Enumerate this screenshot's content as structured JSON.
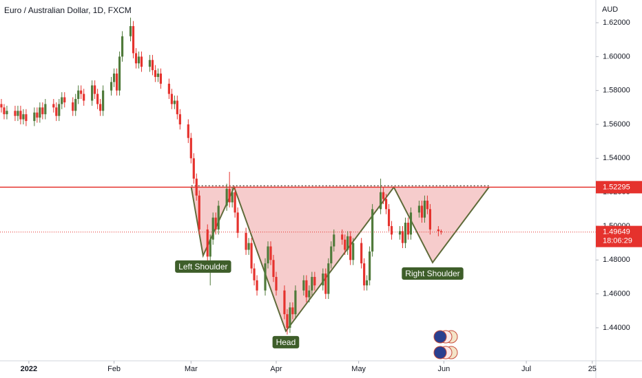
{
  "chart_data": {
    "type": "candlestick",
    "title": "Euro / Australian Dollar, 1D, FXCM",
    "y_axis_label": "AUD",
    "up_color": "#4f7a3a",
    "down_color": "#e5322d",
    "xlim": [
      -10.5,
      206.3
    ],
    "xticks": [
      {
        "value": 0,
        "label": "2022"
      },
      {
        "value": 31,
        "label": "Feb"
      },
      {
        "value": 59,
        "label": "Mar"
      },
      {
        "value": 90,
        "label": "Apr"
      },
      {
        "value": 120,
        "label": "May"
      },
      {
        "value": 151,
        "label": "Jun"
      },
      {
        "value": 181,
        "label": "Jul"
      },
      {
        "value": 205,
        "label": "25"
      }
    ],
    "ylim": [
      1.4205,
      1.6334
    ],
    "yticks": [
      {
        "value": 1.44,
        "label": "1.44000"
      },
      {
        "value": 1.46,
        "label": "1.46000"
      },
      {
        "value": 1.48,
        "label": "1.48000"
      },
      {
        "value": 1.5,
        "label": "1.50000"
      },
      {
        "value": 1.52,
        "label": "1.52000"
      },
      {
        "value": 1.54,
        "label": "1.54000"
      },
      {
        "value": 1.56,
        "label": "1.56000"
      },
      {
        "value": 1.58,
        "label": "1.58000"
      },
      {
        "value": 1.6,
        "label": "1.60000"
      },
      {
        "value": 1.62,
        "label": "1.62000"
      }
    ],
    "neckline": 1.52295,
    "neckline_color": "#e5322d",
    "last_price": 1.49649,
    "countdown": "18:06:29",
    "candles": [
      [
        -10,
        1.572,
        1.575,
        1.567,
        1.57
      ],
      [
        -9,
        1.57,
        1.572,
        1.563,
        1.566
      ],
      [
        -8,
        1.566,
        1.571,
        1.563,
        1.568
      ],
      [
        -5,
        1.568,
        1.571,
        1.562,
        1.565
      ],
      [
        -4,
        1.565,
        1.571,
        1.562,
        1.568
      ],
      [
        -3,
        1.568,
        1.571,
        1.56,
        1.563
      ],
      [
        -2,
        1.563,
        1.569,
        1.56,
        1.566
      ],
      [
        -1,
        1.566,
        1.569,
        1.559,
        1.562
      ],
      [
        2,
        1.562,
        1.57,
        1.559,
        1.567
      ],
      [
        3,
        1.567,
        1.57,
        1.561,
        1.564
      ],
      [
        4,
        1.564,
        1.573,
        1.561,
        1.57
      ],
      [
        5,
        1.57,
        1.573,
        1.563,
        1.566
      ],
      [
        6,
        1.566,
        1.575,
        1.563,
        1.572
      ],
      [
        9,
        1.572,
        1.575,
        1.567,
        1.57
      ],
      [
        10,
        1.57,
        1.573,
        1.562,
        1.565
      ],
      [
        11,
        1.565,
        1.575,
        1.562,
        1.572
      ],
      [
        12,
        1.572,
        1.579,
        1.569,
        1.576
      ],
      [
        13,
        1.576,
        1.579,
        1.57,
        1.573
      ],
      [
        16,
        1.573,
        1.576,
        1.565,
        1.568
      ],
      [
        17,
        1.568,
        1.578,
        1.565,
        1.575
      ],
      [
        18,
        1.575,
        1.583,
        1.572,
        1.58
      ],
      [
        19,
        1.58,
        1.583,
        1.575,
        1.578
      ],
      [
        20,
        1.578,
        1.581,
        1.571,
        1.574
      ],
      [
        23,
        1.574,
        1.586,
        1.571,
        1.583
      ],
      [
        24,
        1.583,
        1.586,
        1.575,
        1.578
      ],
      [
        25,
        1.578,
        1.581,
        1.569,
        1.572
      ],
      [
        26,
        1.572,
        1.575,
        1.565,
        1.568
      ],
      [
        27,
        1.568,
        1.583,
        1.565,
        1.58
      ],
      [
        30,
        1.58,
        1.588,
        1.577,
        1.585
      ],
      [
        31,
        1.585,
        1.593,
        1.582,
        1.59
      ],
      [
        32,
        1.59,
        1.593,
        1.577,
        1.58
      ],
      [
        33,
        1.58,
        1.603,
        1.577,
        1.6
      ],
      [
        34,
        1.6,
        1.615,
        1.597,
        1.612
      ],
      [
        37,
        1.612,
        1.623,
        1.609,
        1.618
      ],
      [
        38,
        1.618,
        1.621,
        1.599,
        1.602
      ],
      [
        39,
        1.602,
        1.605,
        1.593,
        1.596
      ],
      [
        40,
        1.596,
        1.603,
        1.593,
        1.6
      ],
      [
        41,
        1.6,
        1.603,
        1.591,
        1.594
      ],
      [
        44,
        1.594,
        1.601,
        1.591,
        1.598
      ],
      [
        45,
        1.598,
        1.601,
        1.589,
        1.592
      ],
      [
        46,
        1.592,
        1.595,
        1.585,
        1.588
      ],
      [
        47,
        1.588,
        1.593,
        1.585,
        1.59
      ],
      [
        48,
        1.59,
        1.593,
        1.581,
        1.584
      ],
      [
        51,
        1.584,
        1.587,
        1.575,
        1.578
      ],
      [
        52,
        1.578,
        1.581,
        1.569,
        1.572
      ],
      [
        53,
        1.572,
        1.577,
        1.569,
        1.574
      ],
      [
        54,
        1.574,
        1.577,
        1.563,
        1.566
      ],
      [
        55,
        1.566,
        1.569,
        1.557,
        1.56
      ],
      [
        58,
        1.56,
        1.563,
        1.549,
        1.552
      ],
      [
        59,
        1.552,
        1.555,
        1.537,
        1.54
      ],
      [
        60,
        1.54,
        1.543,
        1.525,
        1.528
      ],
      [
        61,
        1.528,
        1.531,
        1.515,
        1.518
      ],
      [
        62,
        1.518,
        1.521,
        1.495,
        1.498
      ],
      [
        65,
        1.498,
        1.501,
        1.479,
        1.482
      ],
      [
        66,
        1.482,
        1.495,
        1.465,
        1.492
      ],
      [
        67,
        1.492,
        1.508,
        1.489,
        1.505
      ],
      [
        68,
        1.505,
        1.508,
        1.495,
        1.498
      ],
      [
        69,
        1.498,
        1.515,
        1.495,
        1.512
      ],
      [
        72,
        1.512,
        1.525,
        1.509,
        1.522
      ],
      [
        73,
        1.522,
        1.532,
        1.511,
        1.514
      ],
      [
        74,
        1.514,
        1.523,
        1.511,
        1.52
      ],
      [
        75,
        1.52,
        1.523,
        1.505,
        1.508
      ],
      [
        76,
        1.508,
        1.511,
        1.493,
        1.496
      ],
      [
        79,
        1.496,
        1.499,
        1.483,
        1.486
      ],
      [
        80,
        1.486,
        1.493,
        1.483,
        1.49
      ],
      [
        81,
        1.49,
        1.493,
        1.472,
        1.475
      ],
      [
        82,
        1.475,
        1.478,
        1.465,
        1.468
      ],
      [
        83,
        1.468,
        1.471,
        1.459,
        1.462
      ],
      [
        86,
        1.462,
        1.481,
        1.459,
        1.478
      ],
      [
        87,
        1.478,
        1.491,
        1.475,
        1.488
      ],
      [
        88,
        1.488,
        1.491,
        1.477,
        1.48
      ],
      [
        89,
        1.48,
        1.483,
        1.467,
        1.47
      ],
      [
        90,
        1.47,
        1.473,
        1.459,
        1.462
      ],
      [
        93,
        1.462,
        1.465,
        1.445,
        1.448
      ],
      [
        94,
        1.448,
        1.451,
        1.436,
        1.44
      ],
      [
        95,
        1.44,
        1.455,
        1.437,
        1.452
      ],
      [
        96,
        1.452,
        1.455,
        1.445,
        1.448
      ],
      [
        97,
        1.448,
        1.465,
        1.445,
        1.462
      ],
      [
        100,
        1.462,
        1.471,
        1.459,
        1.468
      ],
      [
        101,
        1.468,
        1.471,
        1.455,
        1.458
      ],
      [
        102,
        1.458,
        1.465,
        1.455,
        1.462
      ],
      [
        103,
        1.462,
        1.473,
        1.459,
        1.47
      ],
      [
        104,
        1.47,
        1.473,
        1.462,
        1.465
      ],
      [
        107,
        1.465,
        1.475,
        1.462,
        1.472
      ],
      [
        108,
        1.472,
        1.475,
        1.457,
        1.46
      ],
      [
        109,
        1.46,
        1.481,
        1.457,
        1.478
      ],
      [
        110,
        1.478,
        1.491,
        1.475,
        1.488
      ],
      [
        111,
        1.488,
        1.498,
        1.485,
        1.495
      ],
      [
        114,
        1.495,
        1.498,
        1.489,
        1.492
      ],
      [
        115,
        1.492,
        1.495,
        1.483,
        1.486
      ],
      [
        116,
        1.486,
        1.497,
        1.483,
        1.494
      ],
      [
        117,
        1.494,
        1.497,
        1.477,
        1.48
      ],
      [
        118,
        1.48,
        1.493,
        1.477,
        1.49
      ],
      [
        121,
        1.49,
        1.493,
        1.475,
        1.478
      ],
      [
        122,
        1.478,
        1.481,
        1.462,
        1.465
      ],
      [
        123,
        1.465,
        1.471,
        1.462,
        1.468
      ],
      [
        124,
        1.468,
        1.488,
        1.465,
        1.485
      ],
      [
        125,
        1.485,
        1.513,
        1.482,
        1.51
      ],
      [
        128,
        1.51,
        1.528,
        1.507,
        1.52
      ],
      [
        129,
        1.52,
        1.523,
        1.513,
        1.516
      ],
      [
        130,
        1.516,
        1.519,
        1.507,
        1.51
      ],
      [
        131,
        1.51,
        1.513,
        1.497,
        1.5
      ],
      [
        132,
        1.5,
        1.503,
        1.492,
        1.495
      ],
      [
        135,
        1.495,
        1.5,
        1.492,
        1.497
      ],
      [
        136,
        1.497,
        1.5,
        1.487,
        1.49
      ],
      [
        137,
        1.49,
        1.505,
        1.487,
        1.502
      ],
      [
        138,
        1.502,
        1.505,
        1.492,
        1.495
      ],
      [
        139,
        1.495,
        1.511,
        1.492,
        1.508
      ],
      [
        142,
        1.508,
        1.515,
        1.505,
        1.512
      ],
      [
        143,
        1.512,
        1.515,
        1.502,
        1.505
      ],
      [
        144,
        1.505,
        1.518,
        1.502,
        1.515
      ],
      [
        145,
        1.515,
        1.518,
        1.507,
        1.51
      ],
      [
        146,
        1.51,
        1.513,
        1.495,
        1.498
      ],
      [
        149,
        1.498,
        1.5,
        1.494,
        1.497
      ],
      [
        150,
        1.497,
        1.498,
        1.495,
        1.4965
      ]
    ],
    "pattern": {
      "x": [
        59.1,
        63.4,
        74.7,
        93.5,
        132.8,
        146.9,
        167.4
      ],
      "values": [
        1.52295,
        1.4826,
        1.52295,
        1.438,
        1.52295,
        1.4785,
        1.52295
      ],
      "labels": [
        "Left Shoulder",
        "Head",
        "Right Shoulder"
      ],
      "fill": "rgba(231,120,120,0.38)",
      "line_color": "#5f6b3a",
      "label_color": "#3e5e2a"
    }
  }
}
